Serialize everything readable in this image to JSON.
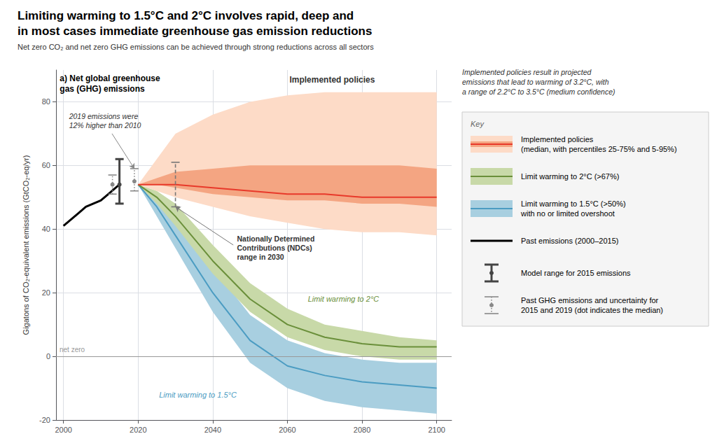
{
  "chart_data": {
    "type": "line",
    "title": "Limiting warming to 1.5°C and 2°C involves rapid, deep and\nin most cases immediate greenhouse gas emission reductions",
    "subtitle": "Net zero CO₂ and net zero GHG emissions can be achieved through strong reductions across all sectors",
    "panel_label": "a) Net global greenhouse\ngas (GHG) emissions",
    "ylabel": "Gigatons of CO₂-equivalent emissions (GtCO₂-eq/yr)",
    "xlim": [
      1998,
      2104
    ],
    "xticks": [
      2000,
      2020,
      2040,
      2060,
      2080,
      2100
    ],
    "ylim": [
      -20,
      90
    ],
    "yticks": [
      -20,
      0,
      20,
      40,
      60,
      80
    ],
    "grid": true,
    "series": [
      {
        "name": "Implemented policies\n(median, with percentiles 25-75% and 5-95%)",
        "x": [
          2020,
          2025,
          2030,
          2040,
          2050,
          2060,
          2070,
          2080,
          2090,
          2100
        ],
        "values": [
          54,
          54,
          54,
          53,
          52,
          51,
          51,
          50,
          50,
          50
        ],
        "p25": [
          54,
          54,
          53,
          51,
          50,
          49,
          49,
          48,
          48,
          47
        ],
        "p75": [
          54,
          56,
          58,
          59,
          60,
          60,
          60,
          60,
          60,
          59
        ],
        "p5": [
          54,
          52,
          50,
          47,
          44,
          42,
          40,
          39,
          39,
          38
        ],
        "p95": [
          54,
          62,
          70,
          76,
          80,
          82,
          83,
          83,
          83,
          83
        ],
        "color": "#e8392a",
        "band_color": "#fddbc7",
        "inner_band_color": "#f4a582"
      },
      {
        "name": "Limit warming to 2°C (>67%)",
        "x": [
          2020,
          2025,
          2030,
          2040,
          2050,
          2060,
          2070,
          2080,
          2090,
          2100
        ],
        "values": [
          54,
          50,
          44,
          30,
          18,
          10,
          6,
          4,
          3,
          3
        ],
        "p25": [
          54,
          48,
          41,
          26,
          14,
          6,
          2,
          0,
          -1,
          -1
        ],
        "p75": [
          54,
          52,
          48,
          35,
          23,
          15,
          10,
          8,
          6,
          5
        ],
        "color": "#6a8f3a",
        "band_color": "#c8d9a8"
      },
      {
        "name": "Limit warming to 1.5°C (>50%)\nwith no or limited overshoot",
        "x": [
          2020,
          2025,
          2030,
          2040,
          2050,
          2060,
          2070,
          2080,
          2090,
          2100
        ],
        "values": [
          54,
          47,
          38,
          20,
          5,
          -3,
          -6,
          -8,
          -9,
          -10
        ],
        "p25": [
          54,
          44,
          34,
          14,
          -2,
          -10,
          -14,
          -16,
          -17,
          -18
        ],
        "p75": [
          54,
          50,
          44,
          28,
          13,
          5,
          1,
          -1,
          -2,
          -2
        ],
        "color": "#4b9cc2",
        "band_color": "#a8cfe0"
      },
      {
        "name": "Past emissions (2000–2015)",
        "x": [
          2000,
          2002,
          2004,
          2006,
          2008,
          2010,
          2012,
          2014,
          2015
        ],
        "values": [
          41,
          43,
          45,
          47,
          48,
          49,
          51,
          53,
          54
        ],
        "color": "#000000"
      }
    ],
    "error_bars": [
      {
        "name": "Model range for 2015 emissions",
        "color": "#444444",
        "line_style": "solid",
        "points": [
          {
            "x": 2015,
            "low": 48,
            "high": 62,
            "median": 54
          }
        ]
      },
      {
        "name": "Past GHG emissions and uncertainty for\n2015 and 2019 (dot indicates the median)",
        "color": "#888888",
        "line_style": "dotted",
        "points": [
          {
            "x": 2015,
            "low": 51,
            "high": 57,
            "median": 54
          },
          {
            "x": 2019,
            "low": 52,
            "high": 59,
            "median": 55
          }
        ]
      },
      {
        "color": "#777777",
        "line_style": "dashed",
        "points": [
          {
            "x": 2030,
            "low": 47,
            "high": 61
          }
        ]
      }
    ],
    "reference_lines": [
      {
        "y": 0,
        "label": "net zero",
        "color": "#999999"
      }
    ],
    "annotations": [
      {
        "text": "Implemented policies"
      },
      {
        "text": "Limit warming to 2°C",
        "color": "#6a8f3a"
      },
      {
        "text": "Limit warming to 1.5°C",
        "color": "#4b9cc2"
      },
      {
        "text": "Nationally Determined\nContributions (NDCs)\nrange in 2030"
      },
      {
        "text": "2019 emissions were\n12% higher than 2010"
      },
      {
        "text": "Implemented policies result in projected\nemissions that lead to warming of 3.2°C, with\na range of 2.2°C to 3.5°C (medium confidence)"
      }
    ],
    "key_title": "Key"
  }
}
